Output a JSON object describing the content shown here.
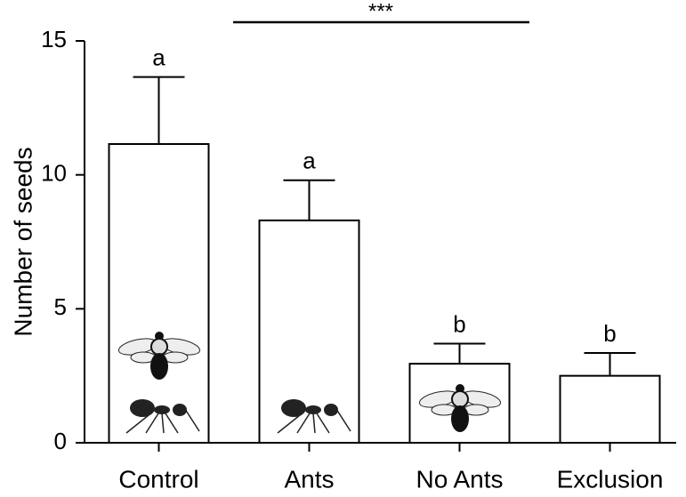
{
  "chart_data": {
    "type": "bar",
    "ylabel": "Number of seeds",
    "categories": [
      "Control",
      "Ants",
      "No Ants",
      "Exclusion"
    ],
    "values": [
      11.15,
      8.3,
      2.95,
      2.5
    ],
    "errors": [
      2.5,
      1.5,
      0.75,
      0.85
    ],
    "letters": [
      "a",
      "a",
      "b",
      "b"
    ],
    "significance": "***",
    "color": "#ffffff",
    "ylim": [
      0,
      15
    ],
    "yticks": [
      0,
      5,
      10,
      15
    ],
    "grid": false
  }
}
